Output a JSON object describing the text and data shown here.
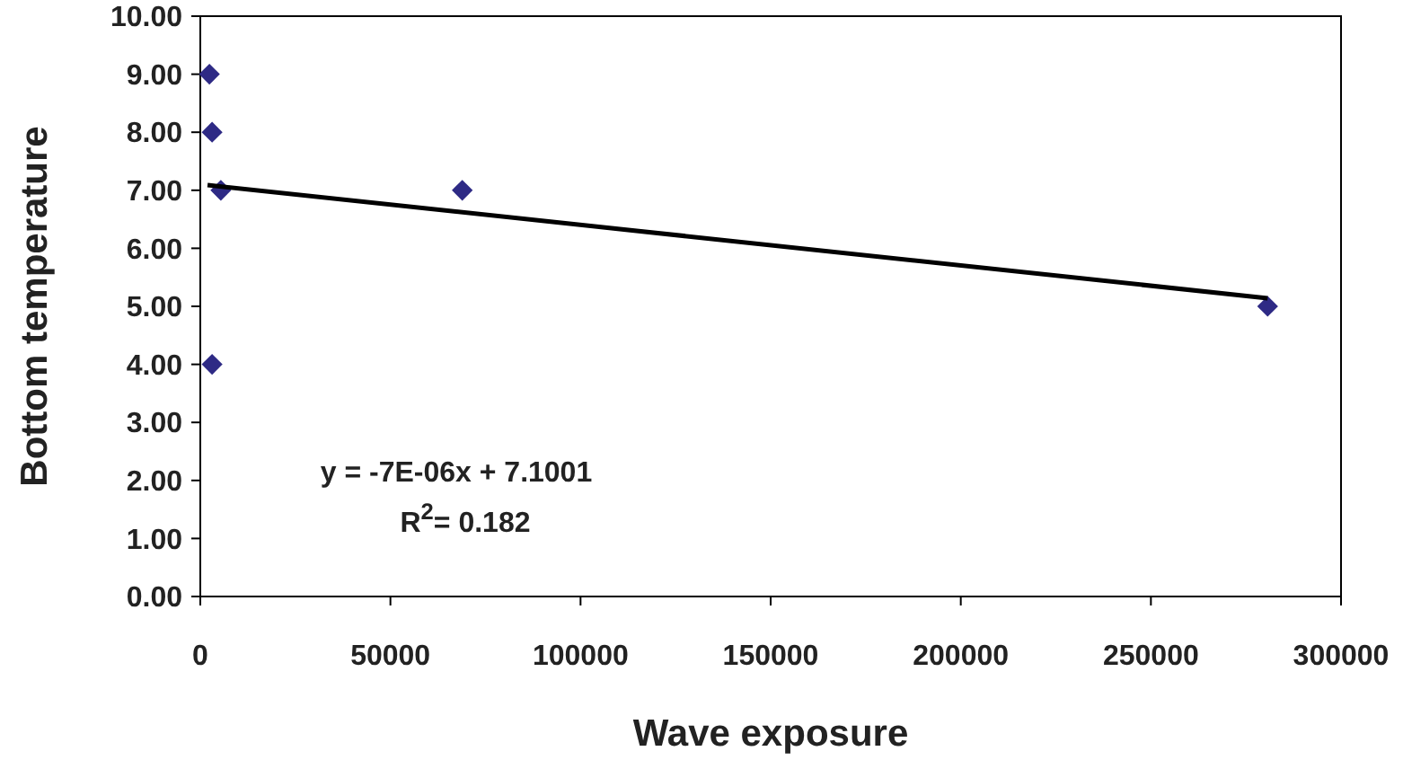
{
  "chart_data": {
    "type": "scatter",
    "xlabel": "Wave exposure",
    "ylabel": "Bottom temperature",
    "xlim": [
      0,
      300000
    ],
    "xticks": [
      0,
      50000,
      100000,
      150000,
      200000,
      250000,
      300000
    ],
    "ylim": [
      0,
      10
    ],
    "yticks": [
      {
        "value": 0,
        "label": "0.00"
      },
      {
        "value": 1,
        "label": "1.00"
      },
      {
        "value": 2,
        "label": "2.00"
      },
      {
        "value": 3,
        "label": "3.00"
      },
      {
        "value": 4,
        "label": "4.00"
      },
      {
        "value": 5,
        "label": "5.00"
      },
      {
        "value": 6,
        "label": "6.00"
      },
      {
        "value": 7,
        "label": "7.00"
      },
      {
        "value": 8,
        "label": "8.00"
      },
      {
        "value": 9,
        "label": "9.00"
      },
      {
        "value": 10,
        "label": "10.00"
      }
    ],
    "grid": false,
    "marker": "diamond",
    "series": [
      {
        "color": "#2e2a85",
        "x": [
          2400,
          3100,
          5400,
          3100,
          68900,
          280700
        ],
        "values": [
          9,
          8,
          7,
          4,
          7,
          5
        ]
      },
      {
        "type": "line",
        "color": "#000000",
        "line_style": "solid",
        "marker": "none",
        "x": [
          1900,
          280700
        ],
        "values": [
          7.09,
          5.14
        ]
      }
    ],
    "annotations": [
      "y = -7E-06x + 7.1001",
      "R$^{2}$= 0.182"
    ]
  }
}
